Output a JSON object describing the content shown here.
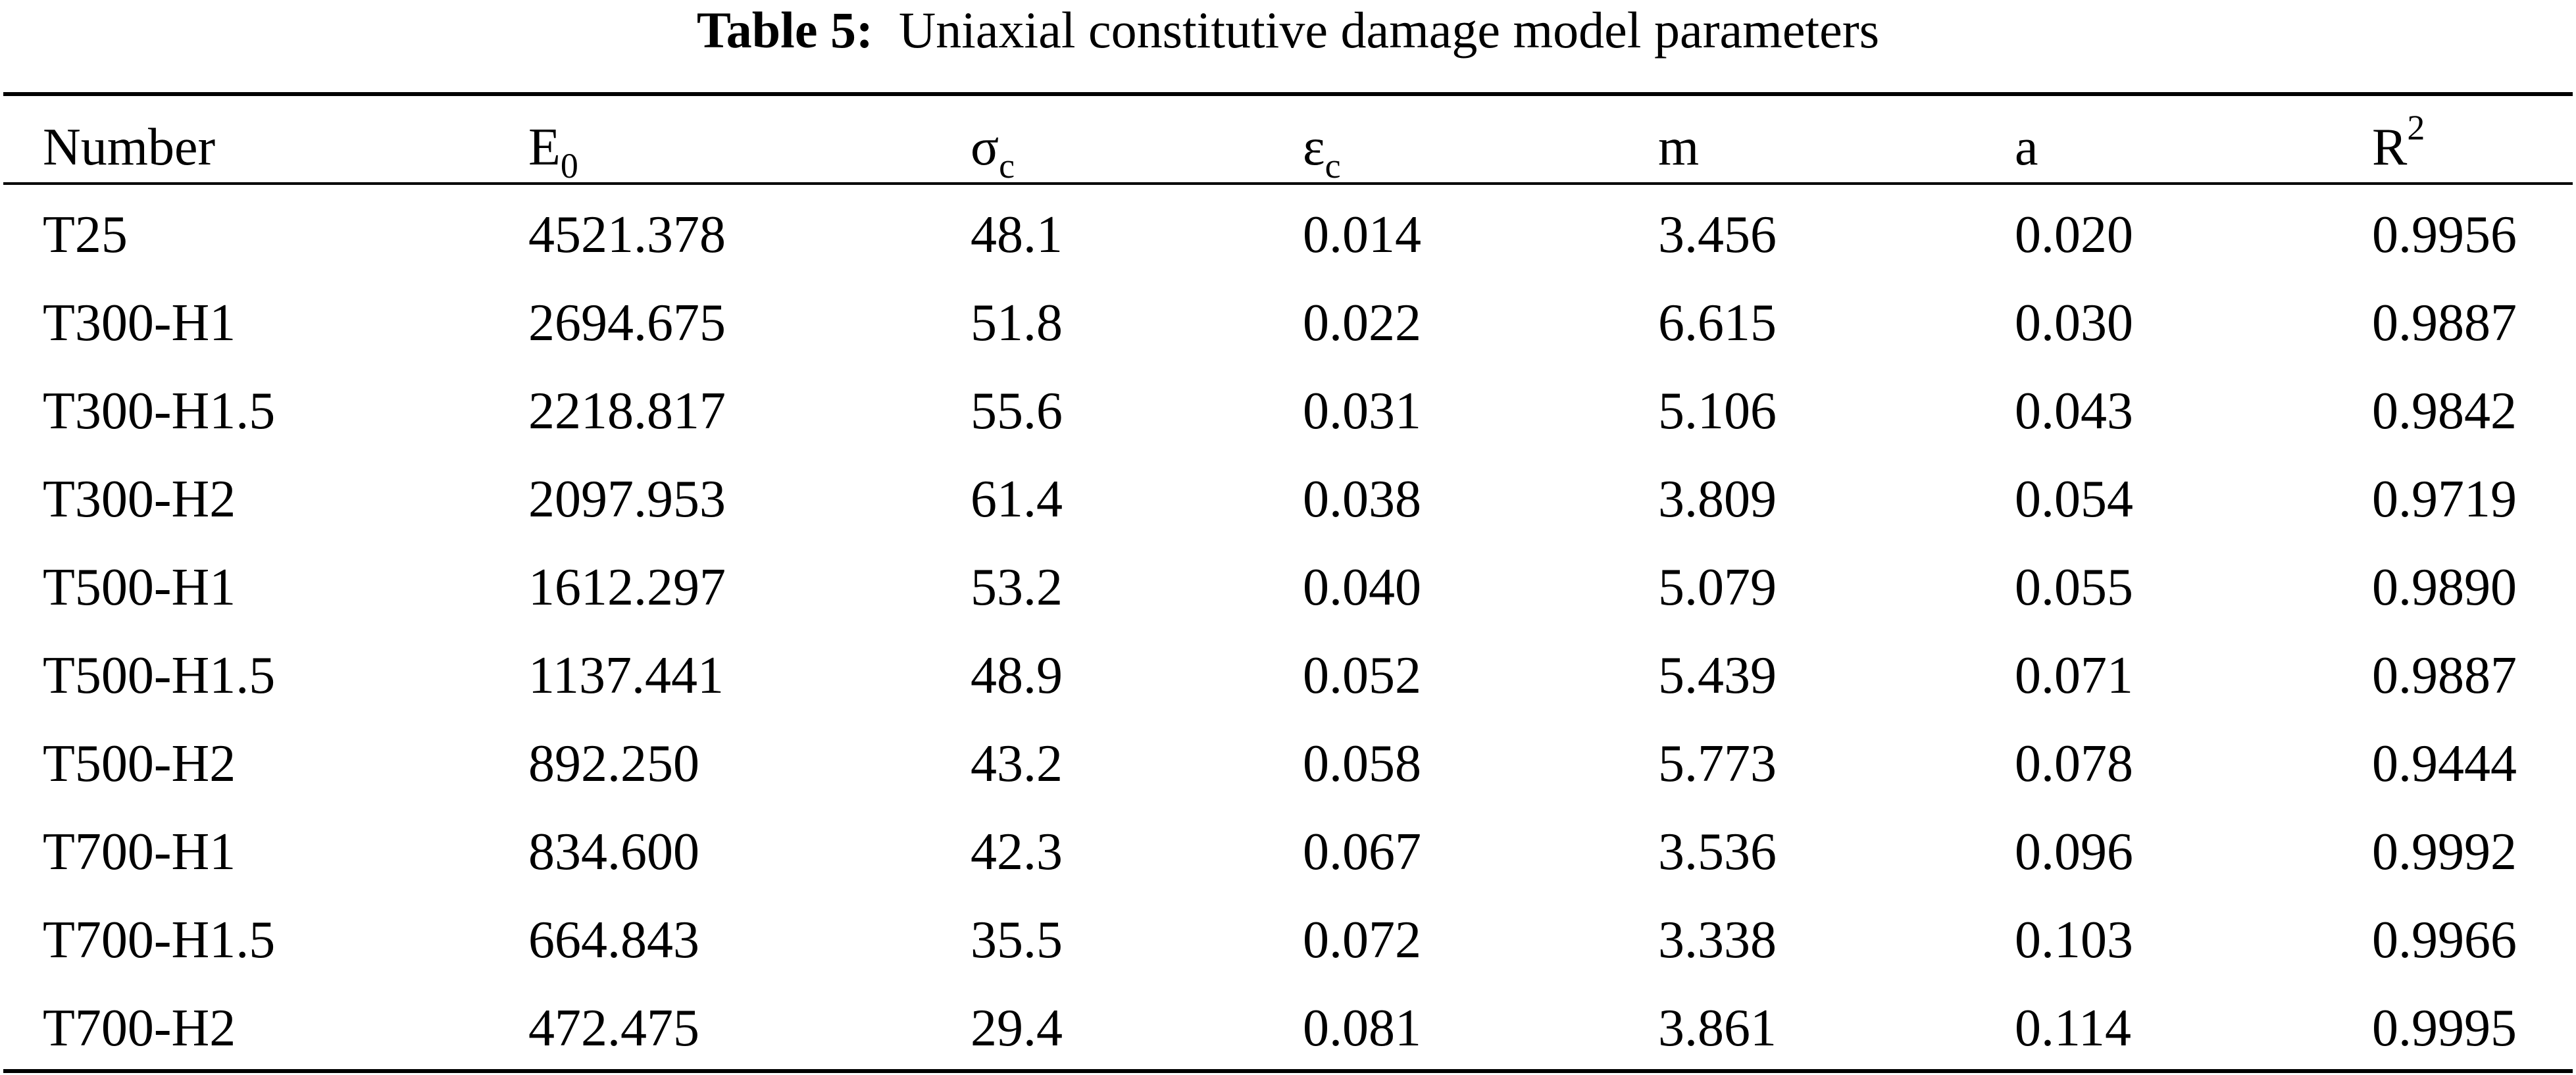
{
  "caption": {
    "label": "Table 5:",
    "text": "Uniaxial constitutive damage model parameters"
  },
  "columns": [
    {
      "base": "Number",
      "sub": "",
      "sup": ""
    },
    {
      "base": "E",
      "sub": "0",
      "sup": ""
    },
    {
      "base": "σ",
      "sub": "c",
      "sup": ""
    },
    {
      "base": "ε",
      "sub": "c",
      "sup": ""
    },
    {
      "base": "m",
      "sub": "",
      "sup": ""
    },
    {
      "base": "a",
      "sub": "",
      "sup": ""
    },
    {
      "base": "R",
      "sub": "",
      "sup": "2"
    }
  ],
  "rows": [
    [
      "T25",
      "4521.378",
      "48.1",
      "0.014",
      "3.456",
      "0.020",
      "0.9956"
    ],
    [
      "T300-H1",
      "2694.675",
      "51.8",
      "0.022",
      "6.615",
      "0.030",
      "0.9887"
    ],
    [
      "T300-H1.5",
      "2218.817",
      "55.6",
      "0.031",
      "5.106",
      "0.043",
      "0.9842"
    ],
    [
      "T300-H2",
      "2097.953",
      "61.4",
      "0.038",
      "3.809",
      "0.054",
      "0.9719"
    ],
    [
      "T500-H1",
      "1612.297",
      "53.2",
      "0.040",
      "5.079",
      "0.055",
      "0.9890"
    ],
    [
      "T500-H1.5",
      "1137.441",
      "48.9",
      "0.052",
      "5.439",
      "0.071",
      "0.9887"
    ],
    [
      "T500-H2",
      "892.250",
      "43.2",
      "0.058",
      "5.773",
      "0.078",
      "0.9444"
    ],
    [
      "T700-H1",
      "834.600",
      "42.3",
      "0.067",
      "3.536",
      "0.096",
      "0.9992"
    ],
    [
      "T700-H1.5",
      "664.843",
      "35.5",
      "0.072",
      "3.338",
      "0.103",
      "0.9966"
    ],
    [
      "T700-H2",
      "472.475",
      "29.4",
      "0.081",
      "3.861",
      "0.114",
      "0.9995"
    ]
  ]
}
